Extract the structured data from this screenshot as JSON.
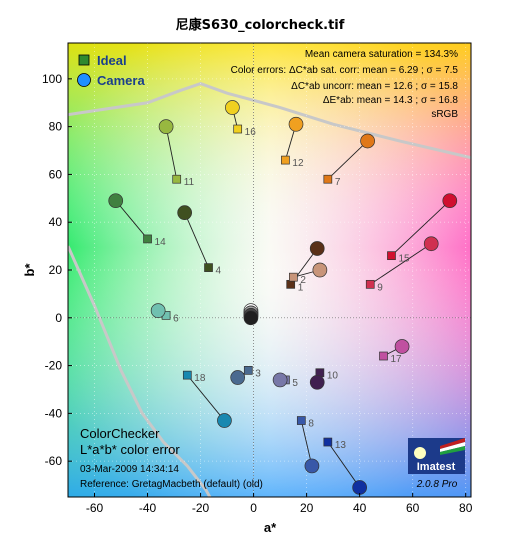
{
  "chart_data": {
    "type": "scatter",
    "title": "尼康S630_colorcheck.tif",
    "xlabel": "a*",
    "ylabel": "b*",
    "xlim": [
      -70,
      82
    ],
    "ylim": [
      -75,
      115
    ],
    "xticks": [
      -60,
      -40,
      -20,
      0,
      20,
      40,
      60,
      80
    ],
    "yticks": [
      -60,
      -40,
      -20,
      0,
      20,
      40,
      60,
      80,
      100
    ],
    "grid": "dotted",
    "legend": {
      "position": "top-left",
      "items": [
        {
          "label": "Ideal",
          "marker": "square",
          "color": "#3a8c3a"
        },
        {
          "label": "Camera",
          "marker": "circle",
          "color": "#1f8fff"
        }
      ]
    },
    "info_lines": [
      "Mean camera saturation = 134.3%",
      "Color errors: ΔC*ab sat. corr:  mean = 6.29 ;  σ = 7.5",
      "ΔC*ab uncorr:  mean = 12.6 ;  σ = 15.8",
      "ΔE*ab:  mean = 14.3 ;  σ = 16.8",
      "sRGB"
    ],
    "footer": {
      "title1": "ColorChecker",
      "title2": "L*a*b* color error",
      "timestamp": "03-Mar-2009 14:34:14",
      "reference": "Reference: GretagMacbeth (default) (old)"
    },
    "logo": {
      "name": "Imatest",
      "version": "2.0.8  Pro"
    },
    "patches": [
      {
        "id": "1",
        "ideal": [
          14,
          14
        ],
        "camera": [
          24,
          29
        ],
        "color": "#5a3018"
      },
      {
        "id": "2",
        "ideal": [
          15,
          17
        ],
        "camera": [
          25,
          20
        ],
        "color": "#c8957a"
      },
      {
        "id": "3",
        "ideal": [
          -2,
          -22
        ],
        "camera": [
          -6,
          -25
        ],
        "color": "#4a6a90"
      },
      {
        "id": "4",
        "ideal": [
          -17,
          21
        ],
        "camera": [
          -26,
          44
        ],
        "color": "#3f5020"
      },
      {
        "id": "5",
        "ideal": [
          12,
          -26
        ],
        "camera": [
          10,
          -26
        ],
        "color": "#7878a8"
      },
      {
        "id": "6",
        "ideal": [
          -33,
          1
        ],
        "camera": [
          -36,
          3
        ],
        "color": "#70c0b0"
      },
      {
        "id": "7",
        "ideal": [
          28,
          58
        ],
        "camera": [
          43,
          74
        ],
        "color": "#e07818"
      },
      {
        "id": "8",
        "ideal": [
          18,
          -43
        ],
        "camera": [
          22,
          -62
        ],
        "color": "#3858a8"
      },
      {
        "id": "9",
        "ideal": [
          44,
          14
        ],
        "camera": [
          67,
          31
        ],
        "color": "#d03050"
      },
      {
        "id": "10",
        "ideal": [
          25,
          -23
        ],
        "camera": [
          24,
          -27
        ],
        "color": "#402050"
      },
      {
        "id": "11",
        "ideal": [
          -29,
          58
        ],
        "camera": [
          -33,
          80
        ],
        "color": "#98b840"
      },
      {
        "id": "12",
        "ideal": [
          12,
          66
        ],
        "camera": [
          16,
          81
        ],
        "color": "#f0a020"
      },
      {
        "id": "13",
        "ideal": [
          28,
          -52
        ],
        "camera": [
          40,
          -71
        ],
        "color": "#1030a0"
      },
      {
        "id": "14",
        "ideal": [
          -40,
          33
        ],
        "camera": [
          -52,
          49
        ],
        "color": "#408040"
      },
      {
        "id": "15",
        "ideal": [
          52,
          26
        ],
        "camera": [
          74,
          49
        ],
        "color": "#d01030"
      },
      {
        "id": "16",
        "ideal": [
          -6,
          79
        ],
        "camera": [
          -8,
          88
        ],
        "color": "#f0d020"
      },
      {
        "id": "17",
        "ideal": [
          49,
          -16
        ],
        "camera": [
          56,
          -12
        ],
        "color": "#c050a0"
      },
      {
        "id": "18",
        "ideal": [
          -25,
          -24
        ],
        "camera": [
          -11,
          -43
        ],
        "color": "#1888b0"
      },
      {
        "id": "19",
        "ideal": [
          -1,
          2
        ],
        "camera": [
          -1,
          3
        ],
        "color": "#ffffff"
      },
      {
        "id": "20",
        "ideal": [
          -1,
          1
        ],
        "camera": [
          -1,
          2
        ],
        "color": "#d0d0d0"
      },
      {
        "id": "21",
        "ideal": [
          -1,
          1
        ],
        "camera": [
          -1,
          2
        ],
        "color": "#a0a0a0"
      },
      {
        "id": "22",
        "ideal": [
          -1,
          0
        ],
        "camera": [
          -1,
          1
        ],
        "color": "#707070"
      },
      {
        "id": "23",
        "ideal": [
          -1,
          0
        ],
        "camera": [
          -1,
          1
        ],
        "color": "#484848"
      },
      {
        "id": "24",
        "ideal": [
          -1,
          0
        ],
        "camera": [
          -1,
          0
        ],
        "color": "#202020"
      }
    ]
  }
}
